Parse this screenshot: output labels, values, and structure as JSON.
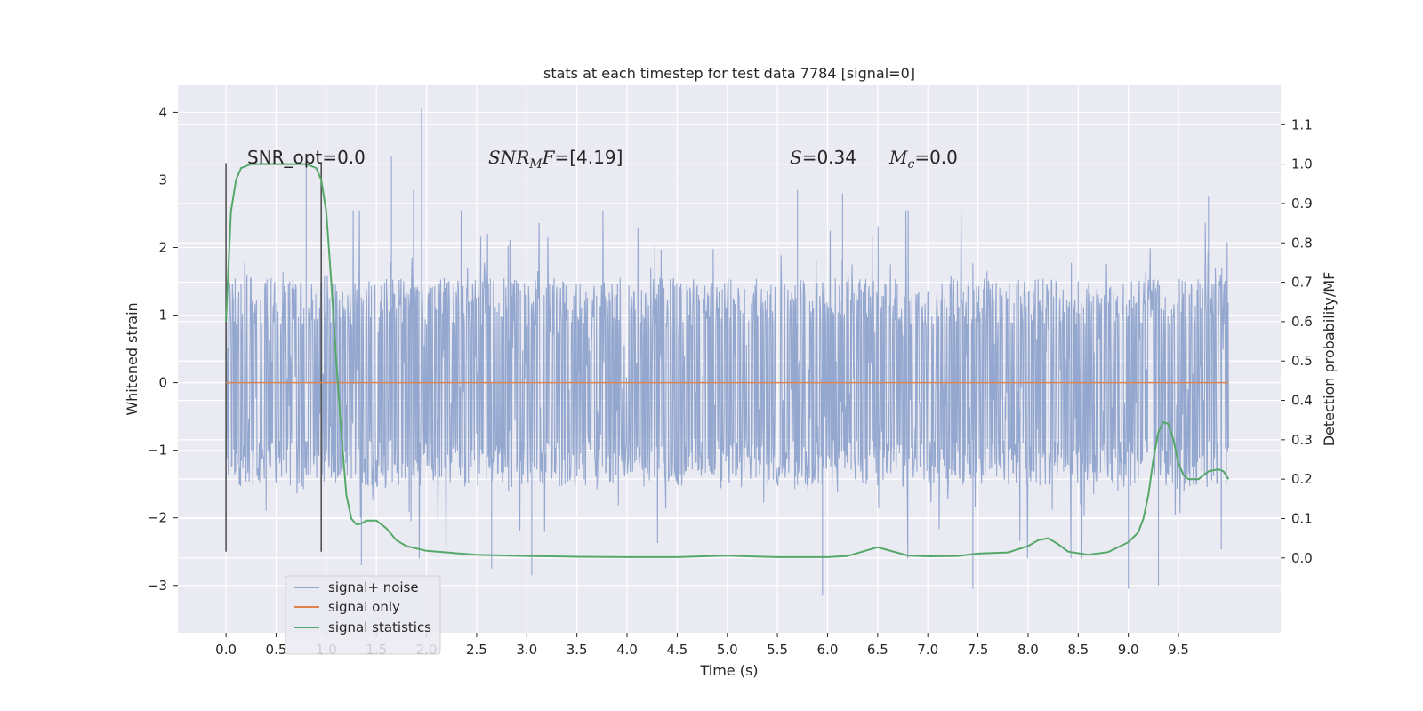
{
  "chart_data": {
    "type": "line",
    "title": "stats at each timestep for test data 7784 [signal=0]",
    "xlabel": "Time (s)",
    "ylabel": "Whitened strain",
    "y2label": "Detection probability/MF",
    "xlim": [
      -0.48,
      10.52
    ],
    "ylim": [
      -3.7,
      4.4
    ],
    "y2lim": [
      -0.19,
      1.2
    ],
    "x_ticks": [
      0.0,
      0.5,
      1.0,
      1.5,
      2.0,
      2.5,
      3.0,
      3.5,
      4.0,
      4.5,
      5.0,
      5.5,
      6.0,
      6.5,
      7.0,
      7.5,
      8.0,
      8.5,
      9.0,
      9.5
    ],
    "x_tick_labels": [
      "0.0",
      "0.5",
      "1.0",
      "1.5",
      "2.0",
      "2.5",
      "3.0",
      "3.5",
      "4.0",
      "4.5",
      "5.0",
      "5.5",
      "6.0",
      "6.5",
      "7.0",
      "7.5",
      "8.0",
      "8.5",
      "9.0",
      "9.5"
    ],
    "y_ticks": [
      -3,
      -2,
      -1,
      0,
      1,
      2,
      3,
      4
    ],
    "y_tick_labels": [
      "−3",
      "−2",
      "−1",
      "0",
      "1",
      "2",
      "3",
      "4"
    ],
    "y2_ticks": [
      0.0,
      0.1,
      0.2,
      0.3,
      0.4,
      0.5,
      0.6,
      0.7,
      0.8,
      0.9,
      1.0,
      1.1
    ],
    "y2_tick_labels": [
      "0.0",
      "0.1",
      "0.2",
      "0.3",
      "0.4",
      "0.5",
      "0.6",
      "0.7",
      "0.8",
      "0.9",
      "1.0",
      "1.1"
    ],
    "grid": true,
    "legend_position": "lower-left",
    "series": [
      {
        "name": "signal+ noise",
        "color": "#8fa3cc",
        "axis": "left",
        "x_range": [
          0.0,
          10.0
        ],
        "envelope": {
          "typical_abs_max": 1.55,
          "peak_max": 4.05,
          "peak_min": -3.15
        },
        "peaks": [
          {
            "x": 0.8,
            "y": 3.3
          },
          {
            "x": 1.65,
            "y": 3.35
          },
          {
            "x": 1.95,
            "y": 4.05
          },
          {
            "x": 1.87,
            "y": 2.85
          },
          {
            "x": 5.7,
            "y": 2.85
          },
          {
            "x": 6.15,
            "y": 2.8
          },
          {
            "x": 9.8,
            "y": 2.75
          },
          {
            "x": 5.95,
            "y": -3.15
          },
          {
            "x": 7.45,
            "y": -3.05
          },
          {
            "x": 9.0,
            "y": -3.05
          },
          {
            "x": 9.3,
            "y": -3.0
          },
          {
            "x": 3.05,
            "y": -2.85
          },
          {
            "x": 1.35,
            "y": -2.7
          },
          {
            "x": 2.65,
            "y": -2.75
          }
        ]
      },
      {
        "name": "signal only",
        "color": "#dd8452",
        "axis": "left",
        "x": [
          0.0,
          10.0
        ],
        "y": [
          0.0,
          0.0
        ]
      },
      {
        "name": "signal statistics",
        "color": "#55a868",
        "axis": "right",
        "x": [
          0.0,
          0.05,
          0.1,
          0.15,
          0.25,
          0.4,
          0.6,
          0.8,
          0.9,
          0.95,
          1.0,
          1.05,
          1.1,
          1.15,
          1.2,
          1.25,
          1.3,
          1.35,
          1.4,
          1.5,
          1.6,
          1.7,
          1.8,
          2.0,
          2.5,
          3.0,
          3.5,
          4.0,
          4.5,
          5.0,
          5.2,
          5.5,
          6.0,
          6.2,
          6.4,
          6.5,
          6.6,
          6.8,
          7.0,
          7.3,
          7.5,
          7.8,
          8.0,
          8.1,
          8.2,
          8.3,
          8.4,
          8.6,
          8.8,
          9.0,
          9.1,
          9.15,
          9.2,
          9.25,
          9.3,
          9.35,
          9.4,
          9.45,
          9.5,
          9.55,
          9.6,
          9.7,
          9.8,
          9.9,
          9.95,
          10.0
        ],
        "y": [
          0.6,
          0.88,
          0.96,
          0.99,
          1.0,
          1.0,
          1.0,
          1.0,
          0.99,
          0.96,
          0.88,
          0.7,
          0.5,
          0.32,
          0.16,
          0.1,
          0.085,
          0.087,
          0.095,
          0.095,
          0.075,
          0.045,
          0.03,
          0.018,
          0.008,
          0.005,
          0.003,
          0.002,
          0.002,
          0.006,
          0.004,
          0.002,
          0.002,
          0.005,
          0.02,
          0.027,
          0.02,
          0.006,
          0.004,
          0.005,
          0.011,
          0.014,
          0.03,
          0.045,
          0.05,
          0.035,
          0.016,
          0.008,
          0.015,
          0.04,
          0.065,
          0.1,
          0.16,
          0.25,
          0.32,
          0.345,
          0.34,
          0.3,
          0.24,
          0.21,
          0.2,
          0.2,
          0.22,
          0.225,
          0.22,
          0.2
        ]
      }
    ],
    "vertical_markers": [
      {
        "x": 0.0,
        "y": [
          -2.5,
          3.25
        ],
        "color": "#555555"
      },
      {
        "x": 0.95,
        "y": [
          -2.5,
          3.25
        ],
        "color": "#555555"
      }
    ],
    "annotations": [
      {
        "text": "SNR_opt=0.0",
        "x": 0.2,
        "y": 3.3
      },
      {
        "prefix": "SNR",
        "sub": "M",
        "suffix": "F",
        "value": "=[4.19]",
        "x": 2.6,
        "y": 3.3
      },
      {
        "prefix": "S",
        "value": "=0.34",
        "x": 5.6,
        "y": 3.3
      },
      {
        "prefix": "M",
        "sub": "c",
        "value": "=0.0",
        "x": 6.6,
        "y": 3.3
      }
    ]
  }
}
